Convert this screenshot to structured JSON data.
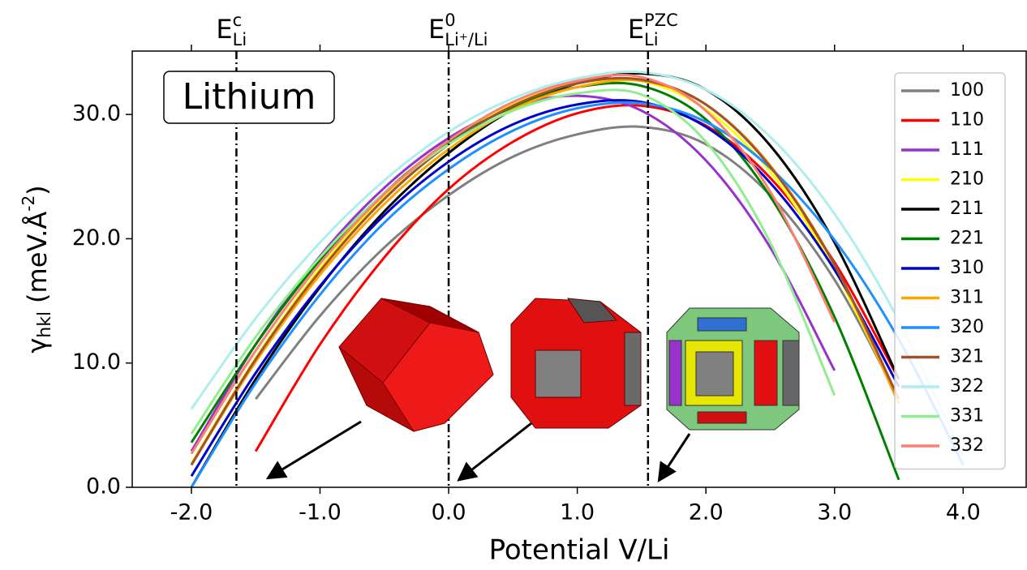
{
  "chart_data": {
    "type": "line",
    "xlabel": "Potential V/Li",
    "ylabel": {
      "symbol": "γ",
      "subscript": "hkl",
      "unit": "(meV.Å",
      "unit_superscript": "-2",
      "unit_close": ")"
    },
    "annotation": "Lithium",
    "reference_lines": [
      {
        "symbol": "E",
        "superscript": "c",
        "subscript": "Li",
        "x": -1.65
      },
      {
        "symbol": "E",
        "superscript": "0",
        "subscript": "Li⁺/Li",
        "x": 0
      },
      {
        "symbol": "E",
        "superscript": "PZC",
        "subscript": "Li",
        "x": 1.55
      }
    ],
    "x": [
      -2.0,
      -1.5,
      -1.0,
      -0.5,
      0.0,
      0.5,
      1.0,
      1.5,
      2.0,
      2.5,
      3.0,
      3.5,
      4.0
    ],
    "series": [
      {
        "name": "100",
        "color": "#808080",
        "values": [
          null,
          7.1,
          13.8,
          19.3,
          23.5,
          26.6,
          28.4,
          29.0,
          27.6,
          23.5,
          16.7,
          7.1,
          null
        ]
      },
      {
        "name": "110",
        "color": "#ff0000",
        "values": [
          null,
          2.9,
          11.5,
          18.5,
          24.0,
          27.8,
          30.1,
          30.7,
          29.1,
          24.9,
          18.1,
          8.7,
          null
        ]
      },
      {
        "name": "111",
        "color": "#9932cc",
        "values": [
          2.9,
          11.5,
          18.6,
          24.1,
          28.1,
          30.6,
          31.5,
          30.3,
          26.3,
          19.3,
          9.4,
          null,
          null
        ]
      },
      {
        "name": "210",
        "color": "#ffff00",
        "values": [
          1.9,
          10.4,
          17.6,
          23.4,
          27.8,
          30.8,
          32.5,
          32.7,
          30.4,
          25.4,
          17.5,
          6.9,
          null
        ]
      },
      {
        "name": "211",
        "color": "#000000",
        "values": [
          0,
          8.7,
          16.1,
          22.2,
          26.9,
          30.4,
          32.5,
          33.3,
          32.0,
          27.5,
          19.7,
          8.7,
          null
        ]
      },
      {
        "name": "221",
        "color": "#008000",
        "values": [
          3.6,
          11.5,
          18.3,
          23.7,
          27.8,
          30.6,
          32.2,
          32.3,
          29.6,
          23.4,
          13.7,
          0.6,
          null
        ]
      },
      {
        "name": "310",
        "color": "#0000cd",
        "values": [
          0.9,
          9.2,
          16.2,
          21.9,
          26.2,
          29.2,
          30.8,
          31.0,
          29.0,
          24.5,
          17.5,
          8.1,
          null
        ]
      },
      {
        "name": "311",
        "color": "#ffa500",
        "values": [
          1.8,
          10.1,
          17.1,
          22.8,
          27.2,
          30.4,
          32.2,
          32.7,
          30.8,
          25.9,
          17.9,
          6.7,
          null
        ]
      },
      {
        "name": "320",
        "color": "#1e90ff",
        "values": [
          0,
          8.4,
          15.5,
          21.3,
          25.6,
          28.7,
          30.5,
          30.9,
          29.4,
          25.7,
          19.9,
          11.9,
          1.8
        ]
      },
      {
        "name": "321",
        "color": "#a0522d",
        "values": [
          1.8,
          10.3,
          17.4,
          23.2,
          27.6,
          30.7,
          32.5,
          32.8,
          30.8,
          25.8,
          17.9,
          7.1,
          null
        ]
      },
      {
        "name": "322",
        "color": "#afeeee",
        "values": [
          6.3,
          13.6,
          19.7,
          24.7,
          28.6,
          31.3,
          32.9,
          33.4,
          32.0,
          28.2,
          22.0,
          13.4,
          2.5
        ]
      },
      {
        "name": "331",
        "color": "#90ee90",
        "values": [
          4.3,
          12.1,
          18.5,
          23.7,
          27.6,
          30.3,
          31.7,
          31.6,
          27.8,
          19.7,
          7.4,
          null,
          null
        ]
      },
      {
        "name": "332",
        "color": "#fa8072",
        "values": [
          2.7,
          11.0,
          18.0,
          23.6,
          27.9,
          31.0,
          32.7,
          33.0,
          30.3,
          23.8,
          13.3,
          null,
          null
        ]
      }
    ],
    "xlim": [
      -2.46,
      4.49
    ],
    "ylim": [
      0,
      35.1
    ],
    "xticks": [
      {
        "value": -2,
        "label": "-2.0"
      },
      {
        "value": -1,
        "label": "-1.0"
      },
      {
        "value": 0,
        "label": "0.0"
      },
      {
        "value": 1,
        "label": "1.0"
      },
      {
        "value": 2,
        "label": "2.0"
      },
      {
        "value": 3,
        "label": "3.0"
      },
      {
        "value": 4,
        "label": "4.0"
      }
    ],
    "yticks": [
      {
        "value": 0,
        "label": "0.0"
      },
      {
        "value": 10,
        "label": "10.0"
      },
      {
        "value": 20,
        "label": "20.0"
      },
      {
        "value": 30,
        "label": "30.0"
      }
    ],
    "grid": false,
    "legend": "upper right"
  }
}
